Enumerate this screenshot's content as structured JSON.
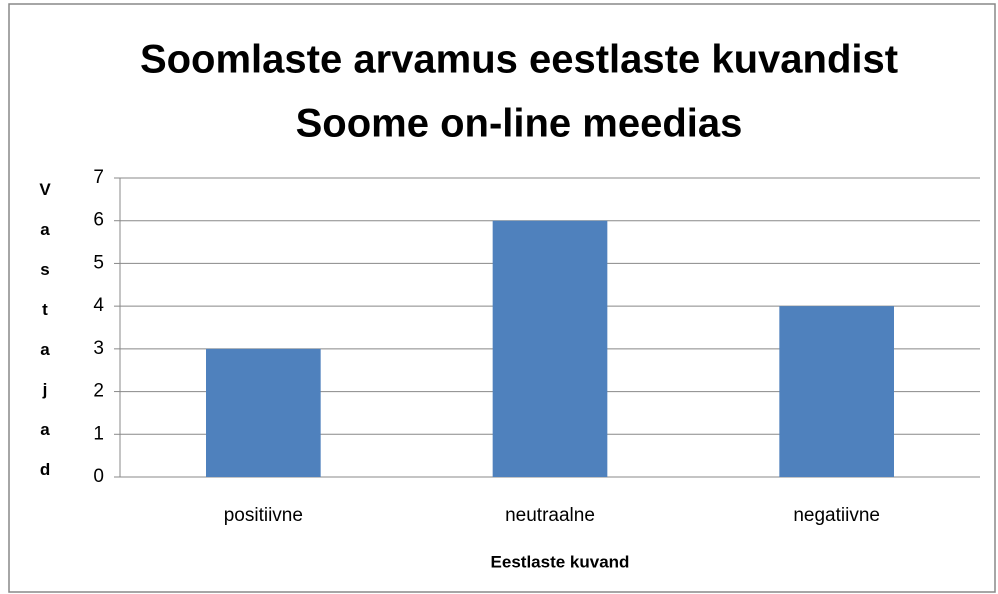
{
  "chart_data": {
    "type": "bar",
    "title": [
      "Soomlaste arvamus eestlaste kuvandist",
      "Soome on-line meedias"
    ],
    "x_label": "Eestlaste kuvand",
    "y_label": "Vastajad",
    "categories": [
      "positiivne",
      "neutraalne",
      "negatiivne"
    ],
    "values": [
      3,
      6,
      4
    ],
    "color": "#4f81bd",
    "ylim": [
      0,
      7
    ],
    "yticks": [
      0,
      1,
      2,
      3,
      4,
      5,
      6,
      7
    ],
    "grid": true
  }
}
